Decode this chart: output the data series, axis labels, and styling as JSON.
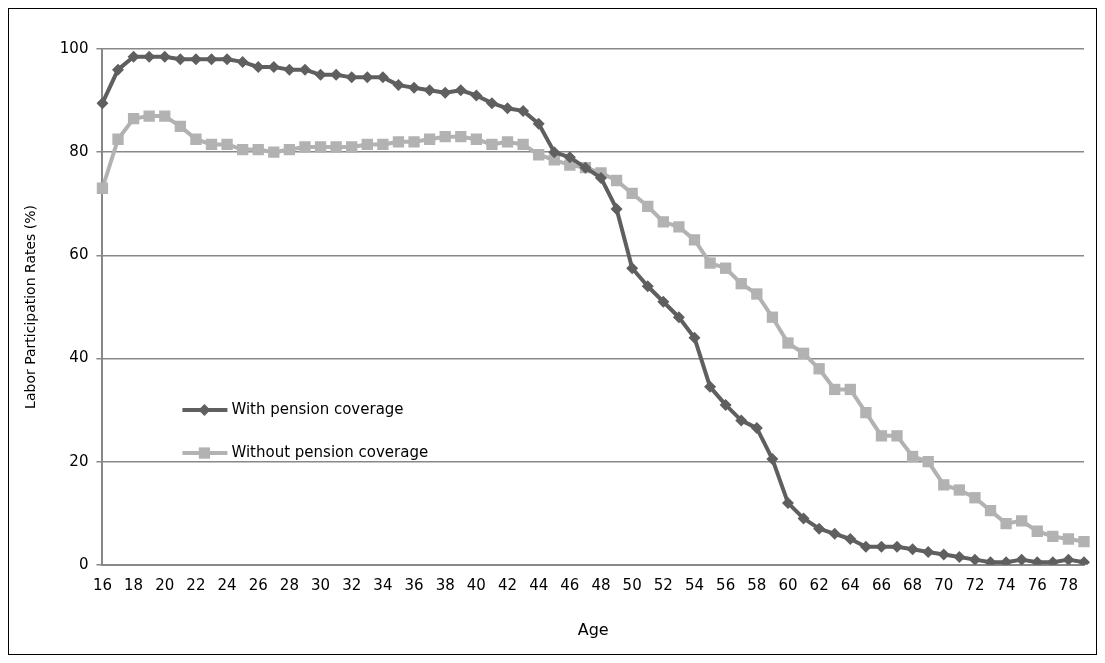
{
  "chart_data": {
    "type": "line",
    "xlabel": "Age",
    "ylabel": "Labor Participation Rates (%)",
    "categories": [
      "16",
      null,
      "18",
      null,
      "20",
      null,
      "22",
      null,
      "24",
      null,
      "26",
      null,
      "28",
      null,
      "30",
      null,
      "32",
      null,
      "34",
      null,
      "36",
      null,
      "38",
      null,
      "40",
      null,
      "42",
      null,
      "44",
      null,
      "46",
      null,
      "48",
      null,
      "50",
      null,
      "52",
      null,
      "54",
      null,
      "56",
      null,
      "58",
      null,
      "60",
      null,
      "62",
      null,
      "64",
      null,
      "66",
      null,
      "68",
      null,
      "70",
      null,
      "72",
      null,
      "74",
      null,
      "76",
      null,
      "78",
      null
    ],
    "series": [
      {
        "name": "With pension coverage",
        "color": "#5f5f5f",
        "marker": "diamond",
        "values": [
          89.5,
          96,
          98.5,
          98.5,
          98.5,
          98,
          98,
          98,
          98,
          97.5,
          96.5,
          96.5,
          96,
          96,
          95,
          95,
          94.5,
          94.5,
          94.5,
          93,
          92.5,
          92,
          91.5,
          92,
          91,
          89.5,
          88.5,
          88,
          85.5,
          80,
          79,
          77,
          75,
          69,
          57.5,
          54,
          51,
          48,
          44,
          34.5,
          31,
          28,
          26.5,
          20.5,
          12,
          9,
          7,
          6,
          5,
          3.5,
          3.5,
          3.5,
          3,
          2.5,
          2,
          1.5,
          1,
          0.5,
          0.5,
          1,
          0.5,
          0.5,
          1,
          0.5
        ]
      },
      {
        "name": "Without pension coverage",
        "color": "#b2b2b2",
        "marker": "square",
        "values": [
          73,
          82.5,
          86.5,
          87,
          87,
          85,
          82.5,
          81.5,
          81.5,
          80.5,
          80.5,
          80,
          80.5,
          81,
          81,
          81,
          81,
          81.5,
          81.5,
          82,
          82,
          82.5,
          83,
          83,
          82.5,
          81.5,
          82,
          81.5,
          79.5,
          78.5,
          77.5,
          77,
          76,
          74.5,
          72,
          69.5,
          66.5,
          65.5,
          63,
          58.5,
          57.5,
          54.5,
          52.5,
          48,
          43,
          41,
          38,
          34,
          34,
          29.5,
          25,
          25,
          21,
          20,
          15.5,
          14.5,
          13,
          10.5,
          8,
          8.5,
          6.5,
          5.5,
          5,
          4.5
        ]
      }
    ],
    "ylim": [
      0,
      100
    ],
    "yticks": [
      0,
      20,
      40,
      60,
      80,
      100
    ],
    "grid": "y",
    "legend": "left",
    "line_style": "solid"
  }
}
